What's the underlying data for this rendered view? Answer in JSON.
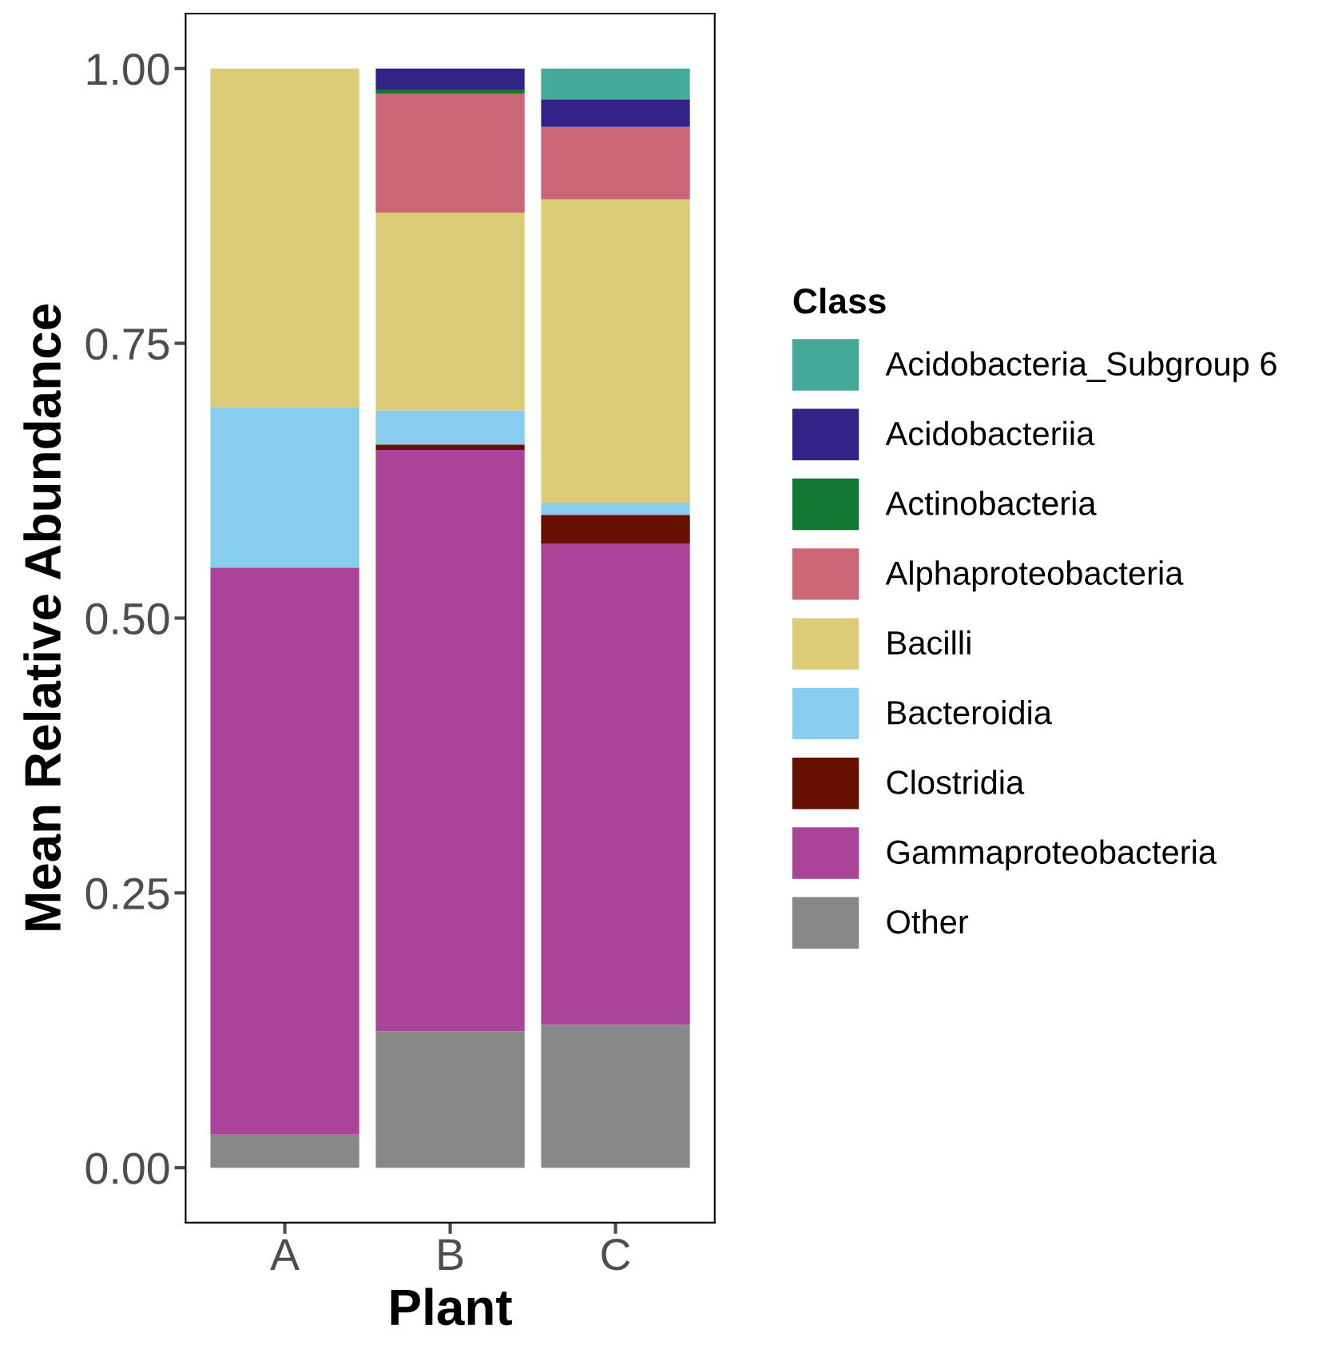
{
  "chart_data": {
    "type": "bar",
    "stacked": true,
    "xlabel": "Plant",
    "ylabel": "Mean Relative Abundance",
    "legend_title": "Class",
    "legend": "right",
    "grid": false,
    "categories": [
      "A",
      "B",
      "C"
    ],
    "ylim": [
      -0.05,
      1.05
    ],
    "yticks": [
      {
        "value": 0,
        "label": "0.00"
      },
      {
        "value": 0.25,
        "label": "0.25"
      },
      {
        "value": 0.5,
        "label": "0.50"
      },
      {
        "value": 0.75,
        "label": "0.75"
      },
      {
        "value": 1,
        "label": "1.00"
      }
    ],
    "series": [
      {
        "name": "Other",
        "color": "#888888",
        "values": [
          0.03,
          0.124,
          0.13
        ]
      },
      {
        "name": "Gammaproteobacteria",
        "color": "#aa4499",
        "values": [
          0.516,
          0.529,
          0.438
        ]
      },
      {
        "name": "Clostridia",
        "color": "#661100",
        "values": [
          0.0,
          0.005,
          0.026
        ]
      },
      {
        "name": "Bacteroidia",
        "color": "#88ccee",
        "values": [
          0.146,
          0.031,
          0.011
        ]
      },
      {
        "name": "Bacilli",
        "color": "#ddcc77",
        "values": [
          0.308,
          0.18,
          0.276
        ]
      },
      {
        "name": "Alphaproteobacteria",
        "color": "#cc6677",
        "values": [
          0.0,
          0.108,
          0.066
        ]
      },
      {
        "name": "Actinobacteria",
        "color": "#117733",
        "values": [
          0.0,
          0.004,
          0.0
        ]
      },
      {
        "name": "Acidobacteriia",
        "color": "#332288",
        "values": [
          0.0,
          0.019,
          0.025
        ]
      },
      {
        "name": "Acidobacteria_Subgroup 6",
        "color": "#44aa99",
        "values": [
          0.0,
          0.0,
          0.028
        ]
      }
    ]
  }
}
